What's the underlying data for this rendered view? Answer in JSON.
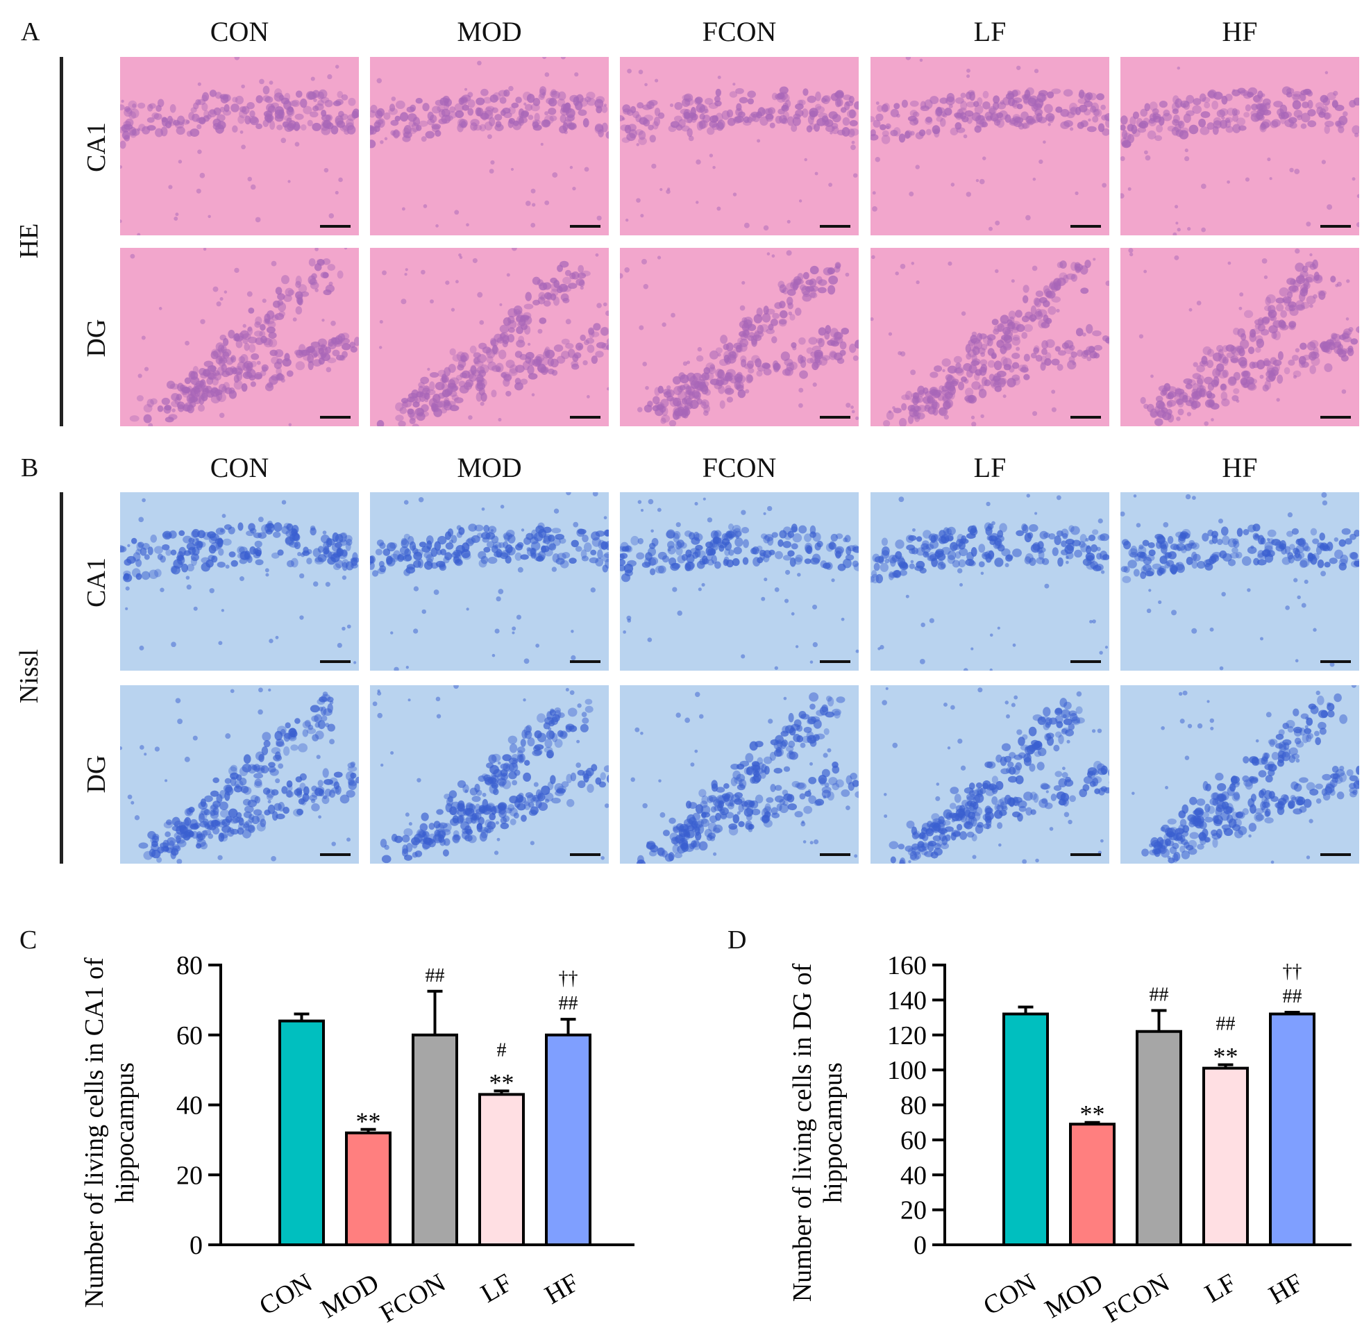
{
  "panel_a": {
    "letter": "A",
    "stain": "HE",
    "groups": [
      "CON",
      "MOD",
      "FCON",
      "LF",
      "HF"
    ],
    "regions": [
      "CA1",
      "DG"
    ],
    "colors": {
      "background": "#f2a6cc",
      "cells": "#a866b8"
    }
  },
  "panel_b": {
    "letter": "B",
    "stain": "Nissl",
    "groups": [
      "CON",
      "MOD",
      "FCON",
      "LF",
      "HF"
    ],
    "regions": [
      "CA1",
      "DG"
    ],
    "colors": {
      "background": "#b9d3ef",
      "cells": "#3a5fd0"
    }
  },
  "chart_data": [
    {
      "type": "bar",
      "letter": "C",
      "title": "",
      "xlabel": "",
      "ylabel": [
        "Number of living cells in CA1 of",
        "hippocampus"
      ],
      "categories": [
        "CON",
        "MOD",
        "FCON",
        "LF",
        "HF"
      ],
      "values": [
        64,
        32,
        60,
        43,
        60
      ],
      "errors": [
        2,
        1,
        12.5,
        1,
        4.5
      ],
      "annotations": [
        [],
        [
          "**"
        ],
        [
          "##"
        ],
        [
          "#",
          "**"
        ],
        [
          "††",
          "##"
        ]
      ],
      "colors": [
        "#00bfbf",
        "#ff7f7f",
        "#a6a6a6",
        "#ffdfe3",
        "#7f9fff"
      ],
      "ylim": [
        0,
        80
      ],
      "yticks": [
        "0",
        "20",
        "40",
        "60",
        "80"
      ],
      "grid": false
    },
    {
      "type": "bar",
      "letter": "D",
      "title": "",
      "xlabel": "",
      "ylabel": [
        "Number of living cells in DG of",
        "hippocampus"
      ],
      "categories": [
        "CON",
        "MOD",
        "FCON",
        "LF",
        "HF"
      ],
      "values": [
        132,
        69,
        122,
        101,
        132
      ],
      "errors": [
        4,
        1,
        12,
        2,
        1
      ],
      "annotations": [
        [],
        [
          "**"
        ],
        [
          "##"
        ],
        [
          "##",
          "**"
        ],
        [
          "††",
          "##"
        ]
      ],
      "colors": [
        "#00bfbf",
        "#ff7f7f",
        "#a6a6a6",
        "#ffdfe3",
        "#7f9fff"
      ],
      "ylim": [
        0,
        160
      ],
      "yticks": [
        "0",
        "20",
        "40",
        "60",
        "80",
        "100",
        "120",
        "140",
        "160"
      ],
      "grid": false
    }
  ]
}
